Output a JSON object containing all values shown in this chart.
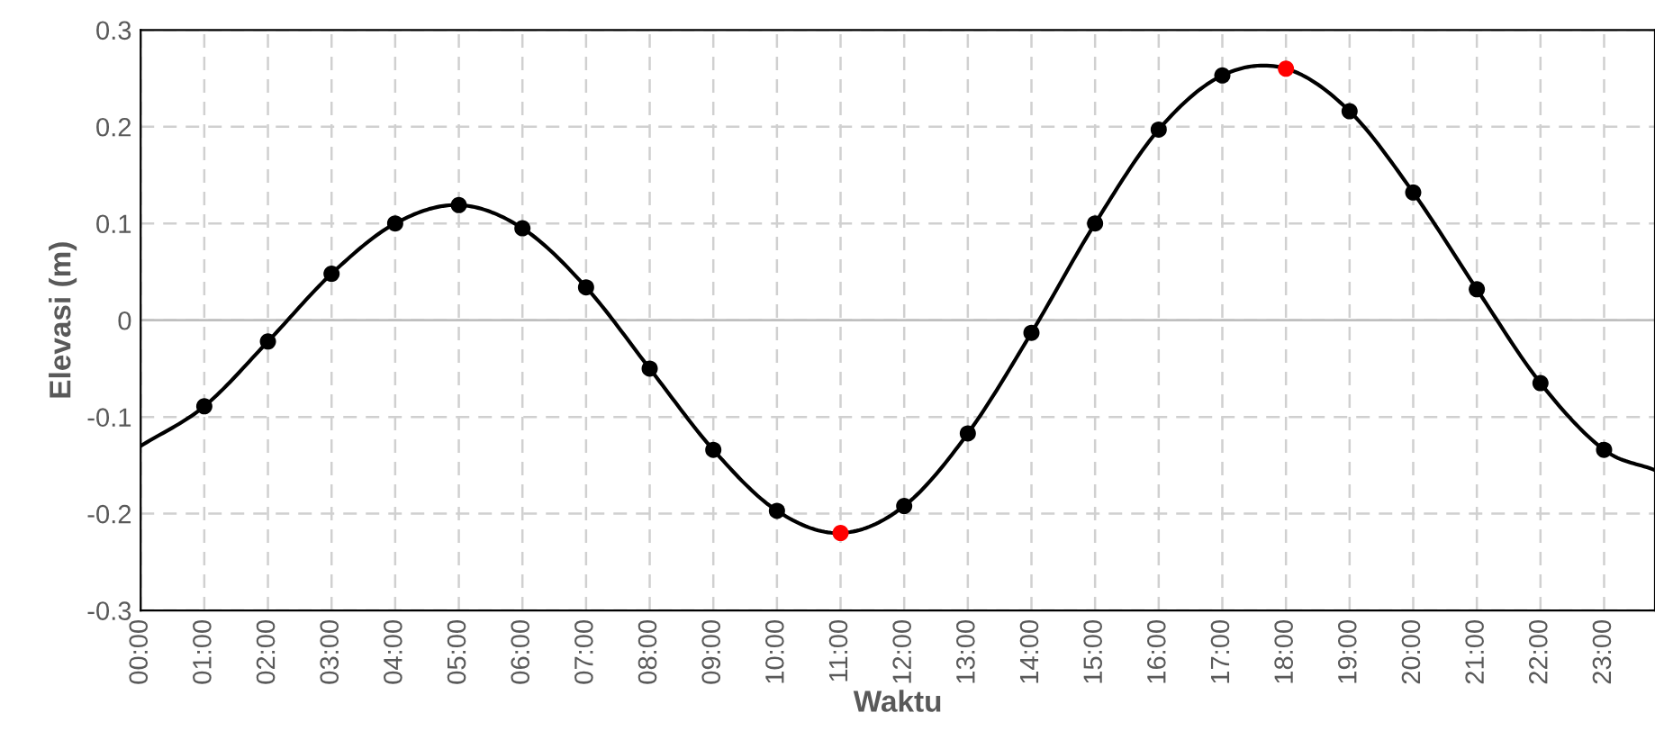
{
  "chart_data": {
    "type": "line",
    "xlabel": "Waktu",
    "ylabel": "Elevasi (m)",
    "x": [
      0,
      1,
      2,
      3,
      4,
      5,
      6,
      7,
      8,
      9,
      10,
      11,
      12,
      13,
      14,
      15,
      16,
      17,
      18,
      19,
      20,
      21,
      22,
      23,
      23.8
    ],
    "series": [
      {
        "color": "#000000",
        "values": [
          -0.13,
          -0.089,
          -0.022,
          0.048,
          0.1,
          0.119,
          0.095,
          0.034,
          -0.05,
          -0.134,
          -0.197,
          -0.22,
          -0.192,
          -0.117,
          -0.013,
          0.1,
          0.197,
          0.253,
          0.26,
          0.216,
          0.132,
          0.032,
          -0.065,
          -0.134,
          -0.155
        ]
      },
      {
        "type": "scatter",
        "marker": "circle",
        "x": [
          1,
          2,
          3,
          4,
          5,
          6,
          7,
          8,
          9,
          10,
          11,
          12,
          13,
          14,
          15,
          16,
          17,
          18,
          19,
          20,
          21,
          22,
          23
        ],
        "values": [
          -0.089,
          -0.022,
          0.048,
          0.1,
          0.119,
          0.095,
          0.034,
          -0.05,
          -0.134,
          -0.197,
          -0.22,
          -0.192,
          -0.117,
          -0.013,
          0.1,
          0.197,
          0.253,
          0.26,
          0.216,
          0.132,
          0.032,
          -0.065,
          -0.134
        ],
        "colors": [
          "#000000",
          "#000000",
          "#000000",
          "#000000",
          "#000000",
          "#000000",
          "#000000",
          "#000000",
          "#000000",
          "#000000",
          "#ff0000",
          "#000000",
          "#000000",
          "#000000",
          "#000000",
          "#000000",
          "#000000",
          "#ff0000",
          "#000000",
          "#000000",
          "#000000",
          "#000000",
          "#000000"
        ]
      }
    ],
    "xlim": [
      0,
      23.8
    ],
    "xticks": [
      {
        "value": 0,
        "label": "00:00"
      },
      {
        "value": 1,
        "label": "01:00"
      },
      {
        "value": 2,
        "label": "02:00"
      },
      {
        "value": 3,
        "label": "03:00"
      },
      {
        "value": 4,
        "label": "04:00"
      },
      {
        "value": 5,
        "label": "05:00"
      },
      {
        "value": 6,
        "label": "06:00"
      },
      {
        "value": 7,
        "label": "07:00"
      },
      {
        "value": 8,
        "label": "08:00"
      },
      {
        "value": 9,
        "label": "09:00"
      },
      {
        "value": 10,
        "label": "10:00"
      },
      {
        "value": 11,
        "label": "11:00"
      },
      {
        "value": 12,
        "label": "12:00"
      },
      {
        "value": 13,
        "label": "13:00"
      },
      {
        "value": 14,
        "label": "14:00"
      },
      {
        "value": 15,
        "label": "15:00"
      },
      {
        "value": 16,
        "label": "16:00"
      },
      {
        "value": 17,
        "label": "17:00"
      },
      {
        "value": 18,
        "label": "18:00"
      },
      {
        "value": 19,
        "label": "19:00"
      },
      {
        "value": 20,
        "label": "20:00"
      },
      {
        "value": 21,
        "label": "21:00"
      },
      {
        "value": 22,
        "label": "22:00"
      },
      {
        "value": 23,
        "label": "23:00"
      }
    ],
    "ylim": [
      -0.3,
      0.3
    ],
    "yticks": [
      -0.3,
      -0.2,
      -0.1,
      0,
      0.1,
      0.2,
      0.3
    ],
    "grid": true,
    "legend": false
  }
}
